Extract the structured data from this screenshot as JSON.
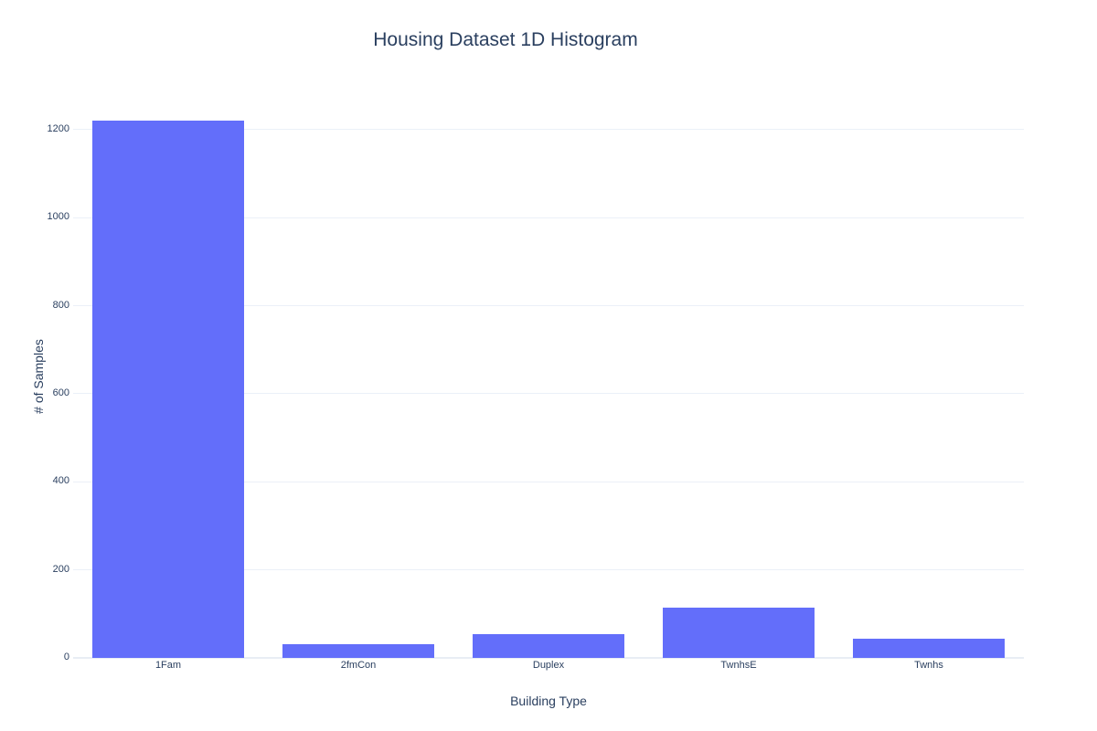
{
  "chart_data": {
    "type": "bar",
    "title": "Housing Dataset 1D Histogram",
    "xlabel": "Building Type",
    "ylabel": "# of Samples",
    "categories": [
      "1Fam",
      "2fmCon",
      "Duplex",
      "TwnhsE",
      "Twnhs"
    ],
    "values": [
      1220,
      31,
      52,
      114,
      43
    ],
    "ylim": [
      0,
      1286
    ],
    "yticks": [
      0,
      200,
      400,
      600,
      800,
      1000,
      1200
    ],
    "grid": true,
    "legend_position": "none",
    "bar_color": "#636efa",
    "grid_color": "#ebf0f8",
    "zeroline_color": "#e8edf4",
    "text_color": "#2a3f5f",
    "background_color": "#ffffff"
  }
}
